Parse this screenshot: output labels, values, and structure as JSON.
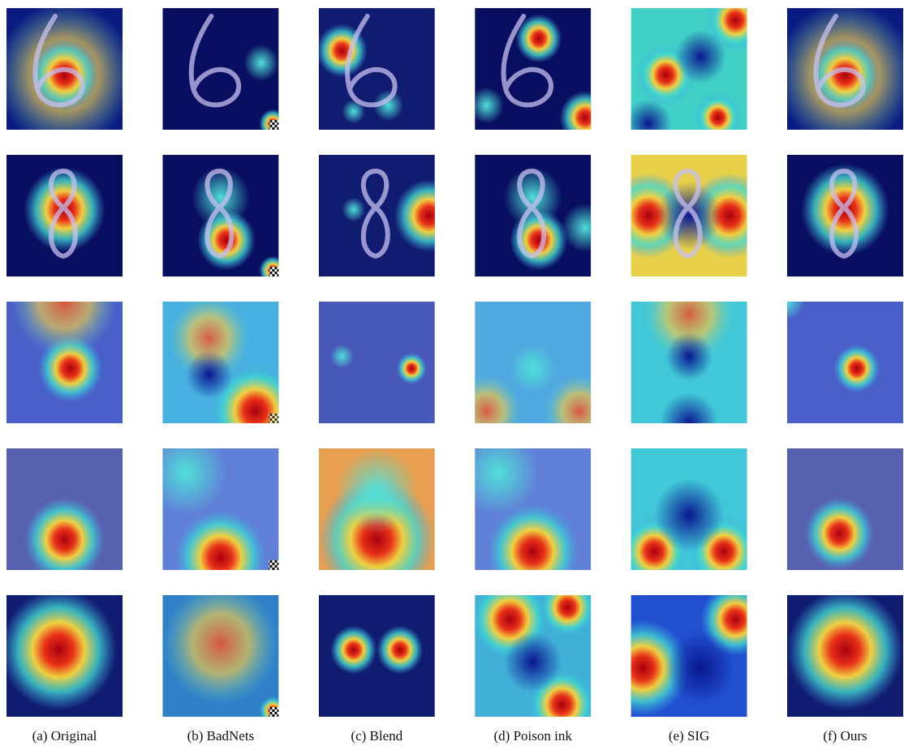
{
  "figure": {
    "columns": [
      {
        "caption": "(a) Original"
      },
      {
        "caption": "(b) BadNets"
      },
      {
        "caption": "(c) Blend"
      },
      {
        "caption": "(d) Poison ink"
      },
      {
        "caption": "(e) SIG"
      },
      {
        "caption": "(f) Ours"
      }
    ]
  }
}
